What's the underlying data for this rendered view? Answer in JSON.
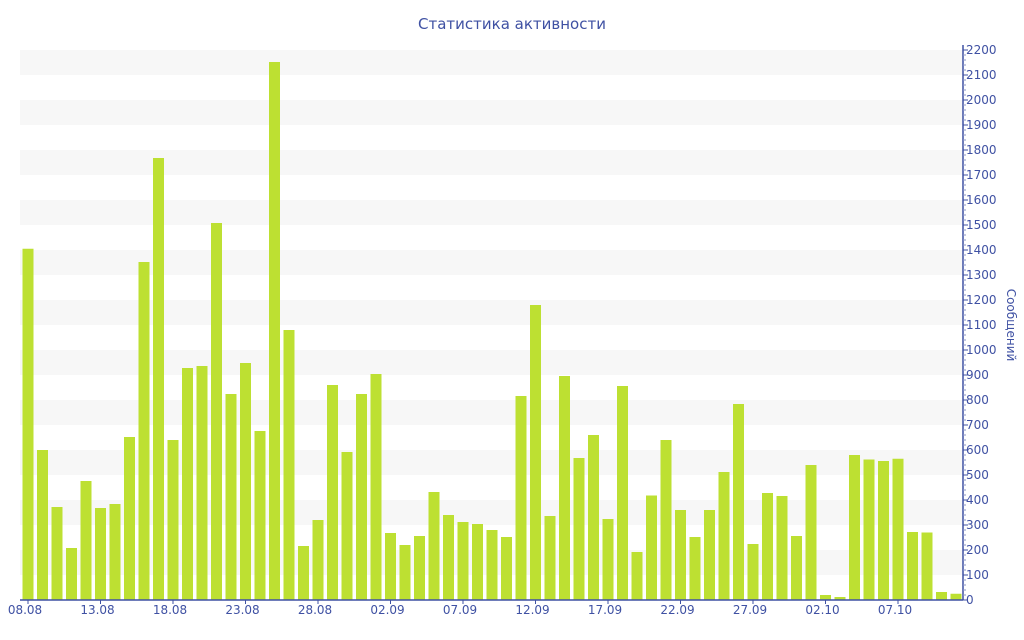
{
  "chart_data": {
    "type": "bar",
    "title": "Статистика активности",
    "xlabel": "",
    "ylabel": "Сообщений",
    "ylim": [
      0,
      2200
    ],
    "y_ticks": [
      0,
      100,
      200,
      300,
      400,
      500,
      600,
      700,
      800,
      900,
      1000,
      1100,
      1200,
      1300,
      1400,
      1500,
      1600,
      1700,
      1800,
      1900,
      2000,
      2100,
      2200
    ],
    "x_tick_labels": [
      "08.08",
      "13.08",
      "18.08",
      "23.08",
      "28.08",
      "02.09",
      "07.09",
      "12.09",
      "17.09",
      "22.09",
      "27.09",
      "02.10",
      "07.10"
    ],
    "x_tick_every": 5,
    "y_axis_side": "right",
    "grid": "alternating horizontal bands",
    "bar_color": "#bde032",
    "text_color": "#3f51a3",
    "categories": [
      "08.08",
      "09.08",
      "10.08",
      "11.08",
      "12.08",
      "13.08",
      "14.08",
      "15.08",
      "16.08",
      "17.08",
      "18.08",
      "19.08",
      "20.08",
      "21.08",
      "22.08",
      "23.08",
      "24.08",
      "25.08",
      "26.08",
      "27.08",
      "28.08",
      "29.08",
      "30.08",
      "31.08",
      "01.09",
      "02.09",
      "03.09",
      "04.09",
      "05.09",
      "06.09",
      "07.09",
      "08.09",
      "09.09",
      "10.09",
      "11.09",
      "12.09",
      "13.09",
      "14.09",
      "15.09",
      "16.09",
      "17.09",
      "18.09",
      "19.09",
      "20.09",
      "21.09",
      "22.09",
      "23.09",
      "24.09",
      "25.09",
      "26.09",
      "27.09",
      "28.09",
      "29.09",
      "30.09",
      "01.10",
      "02.10",
      "03.10",
      "04.10",
      "05.10",
      "06.10",
      "07.10",
      "08.10",
      "09.10",
      "10.10",
      "11.10"
    ],
    "values": [
      1405,
      600,
      372,
      208,
      476,
      368,
      384,
      652,
      1352,
      1768,
      640,
      928,
      936,
      1508,
      824,
      948,
      676,
      2152,
      1080,
      216,
      320,
      860,
      592,
      824,
      904,
      268,
      220,
      256,
      432,
      340,
      312,
      304,
      280,
      252,
      816,
      1180,
      336,
      896,
      568,
      660,
      324,
      856,
      192,
      418,
      640,
      360,
      252,
      360,
      512,
      784,
      224,
      428,
      416,
      256,
      540,
      20,
      12,
      580,
      562,
      556,
      565,
      272,
      270,
      32,
      25
    ]
  }
}
